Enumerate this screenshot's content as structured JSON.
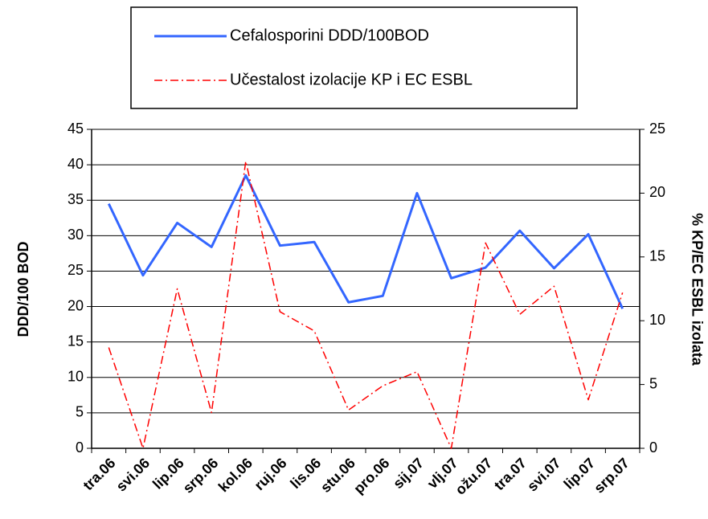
{
  "chart_data": {
    "type": "line",
    "categories": [
      "tra.06",
      "svi.06",
      "lip.06",
      "srp.06",
      "kol.06",
      "ruj.06",
      "lis.06",
      "stu.06",
      "pro.06",
      "sij.07",
      "vlj.07",
      "ožu.07",
      "tra.07",
      "svi.07",
      "lip.07",
      "srp.07"
    ],
    "series": [
      {
        "name": "Cefalosporini DDD/100BOD",
        "color": "#3366ff",
        "dash": "solid",
        "values": [
          34.5,
          24.4,
          31.8,
          28.4,
          38.5,
          28.6,
          29.1,
          20.6,
          21.5,
          36,
          24,
          25.5,
          30.7,
          25.4,
          30.2,
          19.7
        ]
      },
      {
        "name": "Učestalost izolacije KP i EC ESBL",
        "color": "#ff0000",
        "dash": "dashdot",
        "axis": "y2",
        "values": [
          7.9,
          0,
          12.5,
          2.8,
          22.5,
          10.7,
          9.2,
          3,
          4.9,
          6,
          0,
          16.1,
          10.5,
          12.7,
          3.8,
          12.2
        ]
      }
    ],
    "y_label": "DDD/100 BOD",
    "y2_label": "% KP/EC ESBL izolata",
    "ylim": [
      0,
      45
    ],
    "yticks": [
      0,
      5,
      10,
      15,
      20,
      25,
      30,
      35,
      40,
      45
    ],
    "y2lim": [
      0,
      25
    ],
    "y2ticks": [
      0,
      5,
      10,
      15,
      20,
      25
    ],
    "grid": true,
    "legend": "top"
  }
}
